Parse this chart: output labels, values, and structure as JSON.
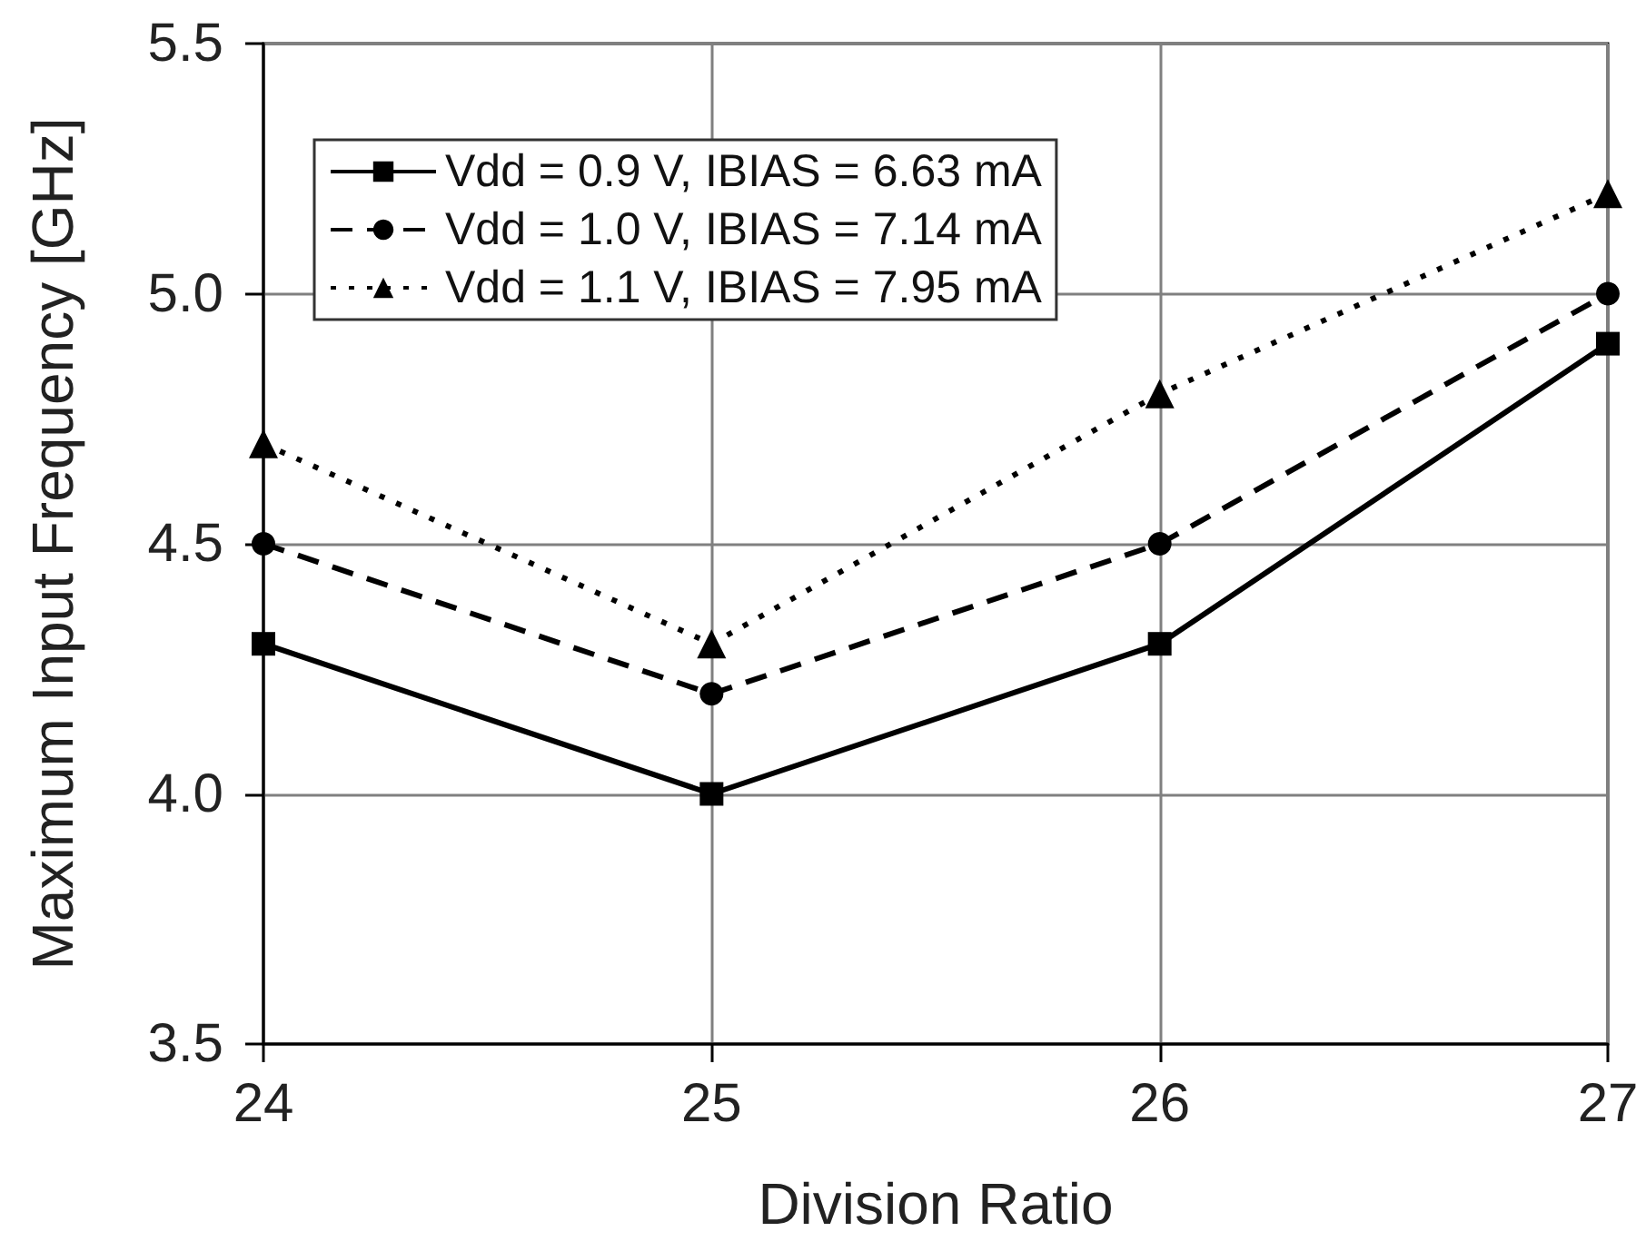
{
  "chart_data": {
    "type": "line",
    "xlabel": "Division Ratio",
    "ylabel": "Maximum Input Frequency [GHz]",
    "x": [
      24,
      25,
      26,
      27
    ],
    "series": [
      {
        "name": "Vdd = 0.9 V, IBIAS = 6.63 mA",
        "color": "#000000",
        "values": [
          4.3,
          4.0,
          4.3,
          4.9
        ],
        "marker": "square",
        "line_style": "solid"
      },
      {
        "name": "Vdd = 1.0 V, IBIAS = 7.14 mA",
        "color": "#000000",
        "values": [
          4.5,
          4.2,
          4.5,
          5.0
        ],
        "marker": "circle",
        "line_style": "dashed"
      },
      {
        "name": "Vdd = 1.1 V, IBIAS = 7.95 mA",
        "color": "#000000",
        "values": [
          4.7,
          4.3,
          4.8,
          5.2
        ],
        "marker": "triangle",
        "line_style": "dotted"
      }
    ],
    "xlim": [
      24,
      27
    ],
    "xticks": [
      24,
      25,
      26,
      27
    ],
    "ylim": [
      3.5,
      5.5
    ],
    "yticks": [
      3.5,
      {
        "value": 4,
        "label": "4.0"
      },
      4.5,
      {
        "value": 5,
        "label": "5.0"
      },
      5.5
    ],
    "grid": true,
    "legend": "top left"
  }
}
